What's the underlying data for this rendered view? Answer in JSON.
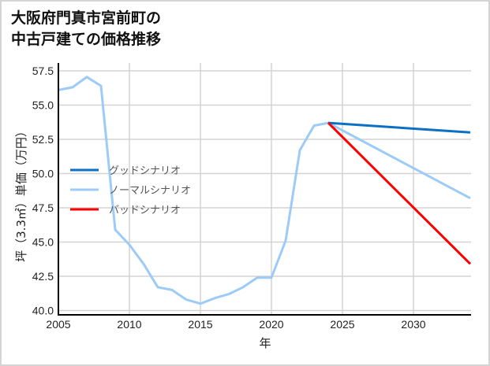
{
  "chart_data": {
    "type": "line",
    "title": "大阪府門真市宮前町の\n中古戸建ての価格推移",
    "title_lines": [
      "大阪府門真市宮前町の",
      "中古戸建ての価格推移"
    ],
    "xlabel": "年",
    "ylabel": "坪（3.3㎡）単価（万円）",
    "xlim": [
      2005,
      2034
    ],
    "ylim": [
      39.8,
      58.0
    ],
    "xticks": [
      2005,
      2010,
      2015,
      2020,
      2025,
      2030
    ],
    "yticks": [
      40.0,
      42.5,
      45.0,
      47.5,
      50.0,
      52.5,
      55.0,
      57.5
    ],
    "ytick_labels": [
      "40.0",
      "42.5",
      "45.0",
      "47.5",
      "50.0",
      "52.5",
      "55.0",
      "57.5"
    ],
    "grid": true,
    "legend_position": "center-left",
    "series": [
      {
        "name": "グッドシナリオ",
        "color": "#0b6fc4",
        "x": [
          2024,
          2034
        ],
        "values": [
          53.7,
          53.0
        ]
      },
      {
        "name": "ノーマルシナリオ",
        "color": "#9ccbf7",
        "x": [
          2005,
          2006,
          2007,
          2008,
          2009,
          2010,
          2011,
          2012,
          2013,
          2014,
          2015,
          2016,
          2017,
          2018,
          2019,
          2020,
          2021,
          2022,
          2023,
          2024,
          2034
        ],
        "values": [
          56.1,
          56.3,
          57.05,
          56.4,
          45.9,
          44.8,
          43.4,
          41.7,
          41.5,
          40.8,
          40.5,
          40.9,
          41.2,
          41.7,
          42.4,
          42.4,
          45.1,
          51.7,
          53.5,
          53.7,
          48.2
        ]
      },
      {
        "name": "バッドシナリオ",
        "color": "#ff0000",
        "x": [
          2024,
          2034
        ],
        "values": [
          53.7,
          43.4
        ]
      }
    ]
  },
  "legend": {
    "items": [
      {
        "label": "グッドシナリオ",
        "color": "#0b6fc4"
      },
      {
        "label": "ノーマルシナリオ",
        "color": "#9ccbf7"
      },
      {
        "label": "バッドシナリオ",
        "color": "#ff0000"
      }
    ]
  }
}
